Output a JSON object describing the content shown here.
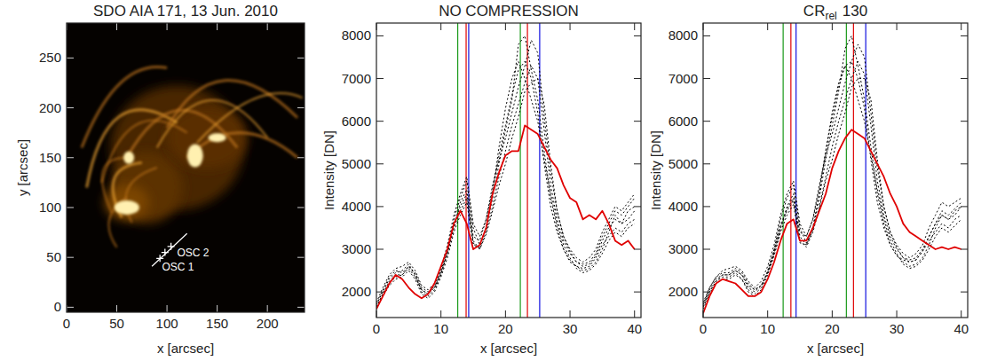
{
  "chart_data": [
    {
      "type": "image",
      "title": "SDO AIA 171, 13 Jun. 2010",
      "x_label": "x [arcsec]",
      "y_label": "y [arcsec]",
      "xlim": [
        0,
        237
      ],
      "ylim": [
        -5,
        285
      ],
      "xticks": [
        0,
        50,
        100,
        150,
        200
      ],
      "yticks": [
        0,
        50,
        100,
        150,
        200,
        250
      ],
      "annotations": [
        {
          "text": "OSC 1",
          "x": 95,
          "y": 37
        },
        {
          "text": "OSC 2",
          "x": 110,
          "y": 51
        }
      ],
      "slit": {
        "x": [
          85,
          120
        ],
        "y": [
          41,
          74
        ]
      },
      "crosses": {
        "x": [
          93,
          98,
          104
        ],
        "y": [
          49,
          55,
          61
        ]
      }
    },
    {
      "type": "line",
      "title": "NO COMPRESSION",
      "x_label": "x [arcsec]",
      "y_label": "Intensity [DN]",
      "xlim": [
        0,
        41
      ],
      "ylim": [
        1400,
        8300
      ],
      "xticks": [
        0,
        10,
        20,
        30,
        40
      ],
      "yticks": [
        2000,
        3000,
        4000,
        5000,
        6000,
        7000,
        8000
      ],
      "x": [
        0,
        1,
        2,
        3,
        4,
        5,
        6,
        7,
        8,
        9,
        10,
        11,
        12,
        13,
        14,
        15,
        16,
        17,
        18,
        19,
        20,
        21,
        22,
        23,
        24,
        25,
        26,
        27,
        28,
        29,
        30,
        31,
        32,
        33,
        34,
        35,
        36,
        37,
        38,
        39,
        40
      ],
      "series": [
        {
          "color": "#000000",
          "line_style": "dotted",
          "values": [
            1700,
            2000,
            2300,
            2450,
            2500,
            2650,
            2400,
            2000,
            1900,
            2050,
            2400,
            2900,
            3500,
            4100,
            4400,
            3300,
            3200,
            3700,
            4400,
            5200,
            5900,
            6600,
            7200,
            7400,
            7000,
            6200,
            5000,
            4000,
            3400,
            3000,
            2700,
            2600,
            2550,
            2600,
            2800,
            3100,
            3300,
            3500,
            3400,
            3600,
            3700
          ]
        },
        {
          "color": "#000000",
          "line_style": "dotted",
          "values": [
            1650,
            1950,
            2200,
            2350,
            2400,
            2550,
            2350,
            2050,
            1950,
            2150,
            2500,
            3000,
            3700,
            4200,
            4600,
            3500,
            3100,
            3500,
            4200,
            5000,
            5800,
            6500,
            7800,
            8000,
            7200,
            6500,
            5300,
            4200,
            3500,
            3000,
            2750,
            2600,
            2500,
            2550,
            2700,
            3000,
            3400,
            3800,
            3600,
            3700,
            3900
          ]
        },
        {
          "color": "#000000",
          "line_style": "dotted",
          "values": [
            1700,
            2050,
            2350,
            2500,
            2450,
            2600,
            2450,
            2100,
            2000,
            2100,
            2450,
            2950,
            3600,
            4000,
            4300,
            3200,
            3000,
            3400,
            4000,
            4700,
            5300,
            5900,
            6400,
            6900,
            7300,
            7000,
            5800,
            4500,
            3700,
            3200,
            2900,
            2700,
            2650,
            2700,
            2900,
            3300,
            3600,
            3900,
            3800,
            4000,
            4200
          ]
        },
        {
          "color": "#000000",
          "line_style": "dotted",
          "values": [
            1600,
            1900,
            2150,
            2300,
            2350,
            2500,
            2300,
            1950,
            1850,
            2000,
            2350,
            2800,
            3400,
            3800,
            4100,
            3100,
            3050,
            3500,
            4300,
            5400,
            6300,
            7000,
            7400,
            7000,
            6500,
            6000,
            5100,
            4300,
            3600,
            3100,
            2800,
            2550,
            2450,
            2500,
            2650,
            2900,
            3200,
            3400,
            3300,
            3500,
            3600
          ]
        },
        {
          "color": "#000000",
          "line_style": "dotted",
          "values": [
            1750,
            2100,
            2400,
            2550,
            2600,
            2700,
            2500,
            2150,
            2050,
            2200,
            2550,
            3100,
            3800,
            4300,
            4700,
            3600,
            3300,
            3700,
            4500,
            5100,
            5600,
            6200,
            6800,
            7300,
            7900,
            7600,
            6100,
            4800,
            3900,
            3300,
            3000,
            2800,
            2700,
            2800,
            3000,
            3400,
            3700,
            4000,
            3900,
            4100,
            4300
          ]
        },
        {
          "color": "#000000",
          "line_style": "dotted",
          "values": [
            1650,
            1950,
            2250,
            2400,
            2400,
            2600,
            2400,
            2050,
            1950,
            2100,
            2450,
            2900,
            3500,
            3900,
            4200,
            3150,
            3000,
            3350,
            3900,
            4500,
            5000,
            5600,
            6100,
            6700,
            6900,
            7000,
            6400,
            5000,
            3900,
            3300,
            2950,
            2700,
            2600,
            2650,
            2850,
            3200,
            3500,
            3700,
            3600,
            3900,
            4000
          ]
        },
        {
          "color": "#e00000",
          "line_style": "solid",
          "values": [
            1600,
            1900,
            2200,
            2400,
            2300,
            2100,
            1950,
            1850,
            1950,
            2200,
            2600,
            3000,
            3600,
            3900,
            3600,
            3000,
            3100,
            3500,
            4300,
            4800,
            5200,
            5300,
            5300,
            5900,
            5800,
            5700,
            5400,
            5100,
            4900,
            4500,
            4200,
            4100,
            3700,
            3800,
            3700,
            3900,
            3600,
            3200,
            3100,
            3200,
            3000
          ]
        }
      ],
      "vlines": [
        {
          "x": 12.6,
          "color": "#1a9a1a"
        },
        {
          "x": 22.3,
          "color": "#1a9a1a"
        },
        {
          "x": 13.9,
          "color": "#e00000"
        },
        {
          "x": 23.4,
          "color": "#e00000"
        },
        {
          "x": 14.3,
          "color": "#1010e0"
        },
        {
          "x": 25.3,
          "color": "#1010e0"
        }
      ]
    },
    {
      "type": "line",
      "title": {
        "text": "CR",
        "subscript": "rel",
        "suffix": "130"
      },
      "x_label": "x [arcsec]",
      "y_label": "Intensity [DN]",
      "xlim": [
        0,
        41
      ],
      "ylim": [
        1400,
        8300
      ],
      "xticks": [
        0,
        10,
        20,
        30,
        40
      ],
      "yticks": [
        2000,
        3000,
        4000,
        5000,
        6000,
        7000,
        8000
      ],
      "x": [
        0,
        1,
        2,
        3,
        4,
        5,
        6,
        7,
        8,
        9,
        10,
        11,
        12,
        13,
        14,
        15,
        16,
        17,
        18,
        19,
        20,
        21,
        22,
        23,
        24,
        25,
        26,
        27,
        28,
        29,
        30,
        31,
        32,
        33,
        34,
        35,
        36,
        37,
        38,
        39,
        40
      ],
      "series": [
        {
          "color": "#000000",
          "line_style": "dotted",
          "values": [
            1700,
            2050,
            2300,
            2400,
            2400,
            2500,
            2400,
            2150,
            2050,
            2150,
            2450,
            2900,
            3500,
            4000,
            4300,
            3400,
            3300,
            3700,
            4400,
            5300,
            6100,
            6800,
            7300,
            7400,
            7000,
            6300,
            5100,
            4100,
            3500,
            3100,
            2850,
            2750,
            2700,
            2750,
            2950,
            3200,
            3400,
            3600,
            3500,
            3700,
            3800
          ]
        },
        {
          "color": "#000000",
          "line_style": "dotted",
          "values": [
            1650,
            2000,
            2250,
            2350,
            2350,
            2450,
            2300,
            2050,
            1950,
            2100,
            2500,
            3000,
            3700,
            4200,
            4500,
            3500,
            3150,
            3500,
            4200,
            5100,
            5900,
            6700,
            7700,
            8000,
            7300,
            6500,
            5400,
            4300,
            3600,
            3100,
            2850,
            2700,
            2600,
            2650,
            2800,
            3100,
            3500,
            3800,
            3700,
            3800,
            4000
          ]
        },
        {
          "color": "#000000",
          "line_style": "dotted",
          "values": [
            1700,
            2100,
            2350,
            2450,
            2450,
            2550,
            2450,
            2200,
            2050,
            2150,
            2450,
            2950,
            3550,
            3950,
            4200,
            3300,
            3100,
            3450,
            4000,
            4700,
            5400,
            6000,
            6500,
            7000,
            7400,
            7100,
            5900,
            4600,
            3800,
            3300,
            3000,
            2800,
            2750,
            2800,
            3000,
            3300,
            3600,
            3900,
            3800,
            3950,
            4100
          ]
        },
        {
          "color": "#000000",
          "line_style": "dotted",
          "values": [
            1600,
            1950,
            2200,
            2300,
            2300,
            2400,
            2300,
            2000,
            1900,
            2050,
            2400,
            2850,
            3400,
            3800,
            4050,
            3150,
            3100,
            3500,
            4300,
            5300,
            6200,
            6900,
            7300,
            7000,
            6500,
            6000,
            5200,
            4400,
            3700,
            3200,
            2900,
            2650,
            2550,
            2600,
            2750,
            3000,
            3300,
            3500,
            3400,
            3550,
            3700
          ]
        },
        {
          "color": "#000000",
          "line_style": "dotted",
          "values": [
            1750,
            2100,
            2350,
            2500,
            2550,
            2600,
            2500,
            2250,
            2100,
            2250,
            2600,
            3100,
            3800,
            4300,
            4600,
            3600,
            3300,
            3700,
            4500,
            5200,
            5700,
            6300,
            6900,
            7400,
            7800,
            7500,
            6200,
            4900,
            4000,
            3400,
            3100,
            2900,
            2800,
            2900,
            3100,
            3500,
            3800,
            4100,
            4000,
            4100,
            4200
          ]
        },
        {
          "color": "#000000",
          "line_style": "dotted",
          "values": [
            1650,
            2000,
            2250,
            2400,
            2400,
            2500,
            2400,
            2100,
            2000,
            2150,
            2450,
            2900,
            3500,
            3900,
            4150,
            3200,
            3050,
            3400,
            3950,
            4600,
            5100,
            5700,
            6200,
            6800,
            7000,
            7000,
            6500,
            5100,
            4000,
            3400,
            3050,
            2800,
            2700,
            2750,
            2950,
            3300,
            3600,
            3800,
            3700,
            3900,
            4000
          ]
        },
        {
          "color": "#e00000",
          "line_style": "solid",
          "values": [
            1500,
            1900,
            2200,
            2300,
            2250,
            2200,
            2050,
            1900,
            1900,
            2000,
            2300,
            2700,
            3200,
            3600,
            3700,
            3200,
            3200,
            3500,
            3900,
            4300,
            4900,
            5300,
            5600,
            5800,
            5700,
            5600,
            5300,
            5000,
            4700,
            4300,
            4000,
            3600,
            3400,
            3300,
            3200,
            3100,
            3000,
            3050,
            3000,
            3050,
            3000
          ]
        }
      ],
      "vlines": [
        {
          "x": 12.4,
          "color": "#1a9a1a"
        },
        {
          "x": 22.2,
          "color": "#1a9a1a"
        },
        {
          "x": 13.6,
          "color": "#e00000"
        },
        {
          "x": 23.3,
          "color": "#e00000"
        },
        {
          "x": 14.4,
          "color": "#1010e0"
        },
        {
          "x": 25.2,
          "color": "#1010e0"
        }
      ]
    }
  ]
}
